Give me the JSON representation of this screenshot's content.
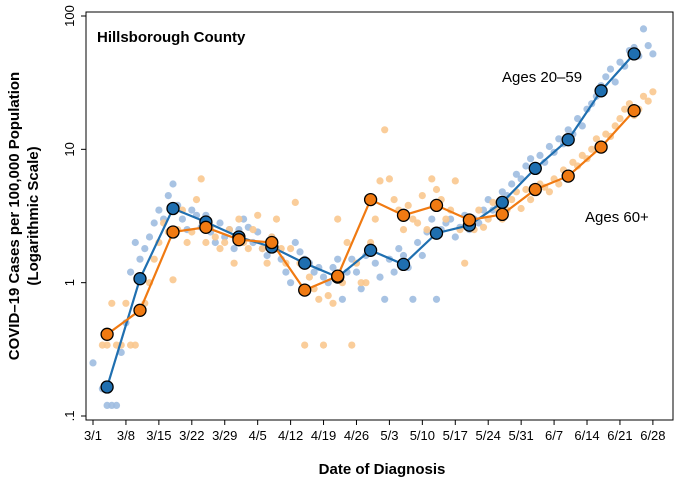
{
  "chart_data": {
    "type": "scatter",
    "title": "Hillsborough County",
    "xlabel": "Date of Diagnosis",
    "ylabel": "COVID–19 Cases per 100,000 Population",
    "ylabel_sub": "(Logarithmic Scale)",
    "y_scale": "log",
    "ylim": [
      0.1,
      100
    ],
    "xlim_days": [
      0,
      122
    ],
    "y_ticks": [
      {
        "value": 0.1,
        "label": ".1"
      },
      {
        "value": 1,
        "label": "1"
      },
      {
        "value": 10,
        "label": "10"
      },
      {
        "value": 100,
        "label": "100"
      }
    ],
    "x_ticks": [
      {
        "day": 0,
        "label": "3/1"
      },
      {
        "day": 7,
        "label": "3/8"
      },
      {
        "day": 14,
        "label": "3/15"
      },
      {
        "day": 21,
        "label": "3/22"
      },
      {
        "day": 28,
        "label": "3/29"
      },
      {
        "day": 35,
        "label": "4/5"
      },
      {
        "day": 42,
        "label": "4/12"
      },
      {
        "day": 49,
        "label": "4/19"
      },
      {
        "day": 56,
        "label": "4/26"
      },
      {
        "day": 63,
        "label": "5/3"
      },
      {
        "day": 70,
        "label": "5/10"
      },
      {
        "day": 77,
        "label": "5/17"
      },
      {
        "day": 84,
        "label": "5/24"
      },
      {
        "day": 91,
        "label": "5/31"
      },
      {
        "day": 98,
        "label": "6/7"
      },
      {
        "day": 105,
        "label": "6/14"
      },
      {
        "day": 112,
        "label": "6/21"
      },
      {
        "day": 119,
        "label": "6/28"
      }
    ],
    "series": [
      {
        "name": "Ages 20–59",
        "line_color": "#1f6fb0",
        "dot_color": "#9fbde0",
        "marker_fill": "#1f6fb0",
        "weekly": [
          [
            3,
            0.165
          ],
          [
            10,
            1.07
          ],
          [
            17,
            3.6
          ],
          [
            24,
            2.85
          ],
          [
            31,
            2.2
          ],
          [
            38,
            1.85
          ],
          [
            45,
            1.4
          ],
          [
            52,
            1.1
          ],
          [
            59,
            1.75
          ],
          [
            66,
            1.37
          ],
          [
            73,
            2.35
          ],
          [
            80,
            2.7
          ],
          [
            87,
            4.0
          ],
          [
            94,
            7.2
          ],
          [
            101,
            11.8
          ],
          [
            108,
            27.5
          ],
          [
            115,
            52.0
          ]
        ],
        "daily": [
          [
            0,
            0.25
          ],
          [
            2,
            0.16
          ],
          [
            3,
            0.12
          ],
          [
            4,
            0.12
          ],
          [
            5,
            0.12
          ],
          [
            6,
            0.3
          ],
          [
            7,
            0.5
          ],
          [
            8,
            1.2
          ],
          [
            9,
            2.0
          ],
          [
            10,
            1.5
          ],
          [
            11,
            1.8
          ],
          [
            12,
            2.2
          ],
          [
            13,
            2.8
          ],
          [
            14,
            3.5
          ],
          [
            15,
            3.0
          ],
          [
            16,
            4.5
          ],
          [
            17,
            5.5
          ],
          [
            18,
            3.8
          ],
          [
            19,
            3.0
          ],
          [
            20,
            2.5
          ],
          [
            21,
            3.5
          ],
          [
            22,
            3.2
          ],
          [
            23,
            2.6
          ],
          [
            24,
            3.2
          ],
          [
            25,
            2.4
          ],
          [
            26,
            2.0
          ],
          [
            27,
            2.8
          ],
          [
            28,
            2.2
          ],
          [
            29,
            2.5
          ],
          [
            30,
            1.8
          ],
          [
            31,
            2.5
          ],
          [
            32,
            3.0
          ],
          [
            33,
            2.6
          ],
          [
            34,
            2.0
          ],
          [
            35,
            2.4
          ],
          [
            36,
            1.8
          ],
          [
            37,
            1.6
          ],
          [
            38,
            2.2
          ],
          [
            39,
            1.8
          ],
          [
            40,
            1.5
          ],
          [
            41,
            1.2
          ],
          [
            42,
            1.0
          ],
          [
            43,
            2.0
          ],
          [
            44,
            1.7
          ],
          [
            45,
            1.5
          ],
          [
            46,
            1.4
          ],
          [
            47,
            1.2
          ],
          [
            48,
            1.3
          ],
          [
            49,
            1.1
          ],
          [
            50,
            1.0
          ],
          [
            51,
            1.3
          ],
          [
            52,
            1.5
          ],
          [
            53,
            0.75
          ],
          [
            54,
            1.2
          ],
          [
            55,
            1.5
          ],
          [
            56,
            1.2
          ],
          [
            57,
            0.9
          ],
          [
            58,
            1.6
          ],
          [
            59,
            1.8
          ],
          [
            60,
            1.4
          ],
          [
            61,
            1.1
          ],
          [
            62,
            0.75
          ],
          [
            63,
            1.5
          ],
          [
            64,
            1.2
          ],
          [
            65,
            1.8
          ],
          [
            66,
            1.6
          ],
          [
            67,
            1.3
          ],
          [
            68,
            0.75
          ],
          [
            69,
            2.0
          ],
          [
            70,
            1.6
          ],
          [
            71,
            2.4
          ],
          [
            72,
            3.0
          ],
          [
            73,
            0.75
          ],
          [
            74,
            2.5
          ],
          [
            75,
            2.8
          ],
          [
            76,
            3.0
          ],
          [
            77,
            2.2
          ],
          [
            78,
            2.6
          ],
          [
            79,
            3.2
          ],
          [
            80,
            2.5
          ],
          [
            81,
            3.0
          ],
          [
            82,
            2.8
          ],
          [
            83,
            3.5
          ],
          [
            84,
            4.2
          ],
          [
            85,
            3.5
          ],
          [
            86,
            3.8
          ],
          [
            87,
            4.8
          ],
          [
            88,
            4.5
          ],
          [
            89,
            5.5
          ],
          [
            90,
            6.5
          ],
          [
            91,
            6.0
          ],
          [
            92,
            7.5
          ],
          [
            93,
            8.5
          ],
          [
            94,
            7.0
          ],
          [
            95,
            9.0
          ],
          [
            96,
            8.0
          ],
          [
            97,
            10.5
          ],
          [
            98,
            9.5
          ],
          [
            99,
            12.0
          ],
          [
            100,
            11.0
          ],
          [
            101,
            14.0
          ],
          [
            102,
            13.0
          ],
          [
            103,
            17.0
          ],
          [
            104,
            15.0
          ],
          [
            105,
            20.0
          ],
          [
            106,
            22.0
          ],
          [
            107,
            25.0
          ],
          [
            108,
            30.0
          ],
          [
            109,
            35.0
          ],
          [
            110,
            40.0
          ],
          [
            111,
            32.0
          ],
          [
            112,
            45.0
          ],
          [
            113,
            42.0
          ],
          [
            114,
            55.0
          ],
          [
            115,
            58.0
          ],
          [
            116,
            50.0
          ],
          [
            117,
            80.0
          ],
          [
            118,
            60.0
          ],
          [
            119,
            52.0
          ]
        ]
      },
      {
        "name": "Ages 60+",
        "line_color": "#f07a12",
        "dot_color": "#f9c88f",
        "marker_fill": "#f07a12",
        "weekly": [
          [
            3,
            0.41
          ],
          [
            10,
            0.62
          ],
          [
            17,
            2.4
          ],
          [
            24,
            2.6
          ],
          [
            31,
            2.1
          ],
          [
            38,
            2.0
          ],
          [
            45,
            0.88
          ],
          [
            52,
            1.12
          ],
          [
            59,
            4.2
          ],
          [
            66,
            3.2
          ],
          [
            73,
            3.8
          ],
          [
            80,
            2.95
          ],
          [
            87,
            3.25
          ],
          [
            94,
            5.0
          ],
          [
            101,
            6.3
          ],
          [
            108,
            10.4
          ],
          [
            115,
            19.5
          ]
        ],
        "daily": [
          [
            2,
            0.34
          ],
          [
            3,
            0.34
          ],
          [
            4,
            0.7
          ],
          [
            5,
            0.34
          ],
          [
            6,
            0.34
          ],
          [
            7,
            0.7
          ],
          [
            8,
            0.34
          ],
          [
            9,
            0.34
          ],
          [
            10,
            1.1
          ],
          [
            11,
            0.7
          ],
          [
            12,
            1.0
          ],
          [
            13,
            1.5
          ],
          [
            14,
            2.0
          ],
          [
            15,
            2.8
          ],
          [
            16,
            2.4
          ],
          [
            17,
            1.05
          ],
          [
            18,
            2.5
          ],
          [
            19,
            3.5
          ],
          [
            20,
            2.0
          ],
          [
            21,
            2.4
          ],
          [
            22,
            4.2
          ],
          [
            23,
            6.0
          ],
          [
            24,
            2.0
          ],
          [
            25,
            2.6
          ],
          [
            26,
            2.2
          ],
          [
            27,
            1.8
          ],
          [
            28,
            2.0
          ],
          [
            29,
            2.5
          ],
          [
            30,
            1.4
          ],
          [
            31,
            3.0
          ],
          [
            32,
            2.0
          ],
          [
            33,
            1.8
          ],
          [
            34,
            2.5
          ],
          [
            35,
            3.2
          ],
          [
            36,
            1.8
          ],
          [
            37,
            1.4
          ],
          [
            38,
            2.2
          ],
          [
            39,
            3.0
          ],
          [
            40,
            1.8
          ],
          [
            41,
            1.4
          ],
          [
            42,
            1.8
          ],
          [
            43,
            4.0
          ],
          [
            44,
            1.4
          ],
          [
            45,
            0.34
          ],
          [
            46,
            1.1
          ],
          [
            47,
            0.9
          ],
          [
            48,
            0.75
          ],
          [
            49,
            0.34
          ],
          [
            50,
            0.8
          ],
          [
            51,
            0.7
          ],
          [
            52,
            3.0
          ],
          [
            53,
            1.0
          ],
          [
            54,
            2.0
          ],
          [
            55,
            0.34
          ],
          [
            56,
            1.4
          ],
          [
            57,
            1.0
          ],
          [
            58,
            1.0
          ],
          [
            59,
            2.0
          ],
          [
            60,
            3.0
          ],
          [
            61,
            5.8
          ],
          [
            62,
            14.0
          ],
          [
            63,
            6.0
          ],
          [
            64,
            4.2
          ],
          [
            65,
            3.5
          ],
          [
            66,
            2.5
          ],
          [
            67,
            3.8
          ],
          [
            68,
            3.0
          ],
          [
            69,
            2.8
          ],
          [
            70,
            4.5
          ],
          [
            71,
            2.5
          ],
          [
            72,
            6.0
          ],
          [
            73,
            5.0
          ],
          [
            74,
            4.2
          ],
          [
            75,
            3.0
          ],
          [
            76,
            3.5
          ],
          [
            77,
            5.8
          ],
          [
            78,
            2.5
          ],
          [
            79,
            1.4
          ],
          [
            80,
            3.0
          ],
          [
            81,
            2.5
          ],
          [
            82,
            3.5
          ],
          [
            83,
            2.6
          ],
          [
            84,
            3.0
          ],
          [
            85,
            4.0
          ],
          [
            86,
            3.6
          ],
          [
            87,
            3.0
          ],
          [
            88,
            3.5
          ],
          [
            89,
            4.2
          ],
          [
            90,
            4.8
          ],
          [
            91,
            3.6
          ],
          [
            92,
            5.0
          ],
          [
            93,
            4.2
          ],
          [
            94,
            4.8
          ],
          [
            95,
            5.5
          ],
          [
            96,
            5.2
          ],
          [
            97,
            4.8
          ],
          [
            98,
            6.0
          ],
          [
            99,
            5.5
          ],
          [
            100,
            7.0
          ],
          [
            101,
            6.5
          ],
          [
            102,
            8.0
          ],
          [
            103,
            7.5
          ],
          [
            104,
            9.0
          ],
          [
            105,
            8.5
          ],
          [
            106,
            10.0
          ],
          [
            107,
            12.0
          ],
          [
            108,
            11.0
          ],
          [
            109,
            13.0
          ],
          [
            110,
            12.5
          ],
          [
            111,
            15.0
          ],
          [
            112,
            17.0
          ],
          [
            113,
            20.0
          ],
          [
            114,
            22.0
          ],
          [
            115,
            18.0
          ],
          [
            116,
            20.0
          ],
          [
            117,
            25.0
          ],
          [
            118,
            23.0
          ],
          [
            119,
            27.0
          ]
        ]
      }
    ],
    "annotations": [
      {
        "text": "Ages 20–59",
        "series": 0
      },
      {
        "text": "Ages 60+",
        "series": 1
      }
    ],
    "grid": false
  }
}
